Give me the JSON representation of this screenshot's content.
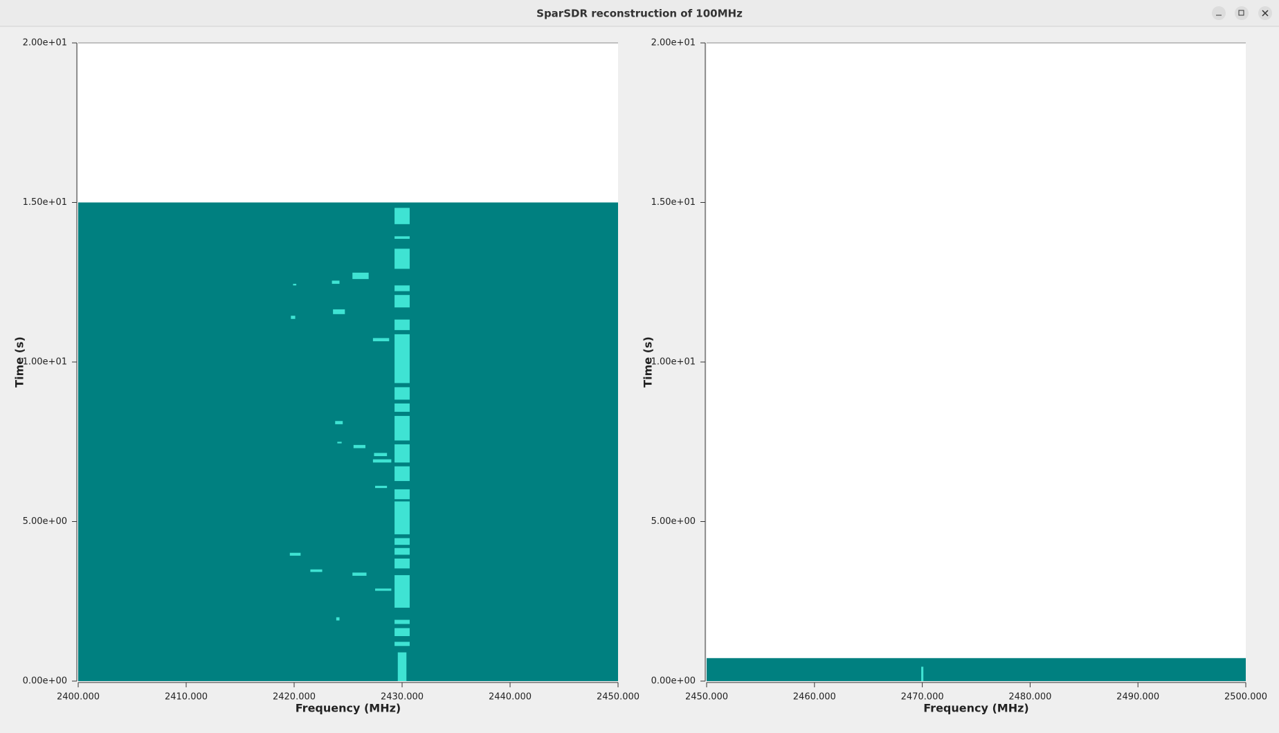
{
  "window": {
    "title": "SparSDR reconstruction of 100MHz"
  },
  "chart_data": [
    {
      "type": "spectrogram",
      "x_label": "Frequency (MHz)",
      "y_label": "Time (s)",
      "xlim": [
        2400,
        2450
      ],
      "ylim": [
        0,
        20
      ],
      "xticks": [
        {
          "value": 2400,
          "label": "2400.000"
        },
        {
          "value": 2410,
          "label": "2410.000"
        },
        {
          "value": 2420,
          "label": "2420.000"
        },
        {
          "value": 2430,
          "label": "2430.000"
        },
        {
          "value": 2440,
          "label": "2440.000"
        },
        {
          "value": 2450,
          "label": "2450.000"
        }
      ],
      "yticks": [
        {
          "value": 0,
          "label": "0.00e+00"
        },
        {
          "value": 5,
          "label": "5.00e+00"
        },
        {
          "value": 10,
          "label": "1.00e+01"
        },
        {
          "value": 15,
          "label": "1.50e+01"
        },
        {
          "value": 20,
          "label": "2.00e+01"
        }
      ],
      "fill_color": "#008080",
      "burst_color": "#3fe3d3",
      "filled_time": [
        0,
        15
      ],
      "bursts": [
        {
          "freq": [
            2429.3,
            2430.7
          ],
          "time": [
            14.32,
            14.83
          ]
        },
        {
          "freq": [
            2429.3,
            2430.7
          ],
          "time": [
            13.86,
            13.94
          ]
        },
        {
          "freq": [
            2429.3,
            2430.7
          ],
          "time": [
            12.92,
            13.55
          ]
        },
        {
          "freq": [
            2429.3,
            2430.7
          ],
          "time": [
            12.22,
            12.4
          ]
        },
        {
          "freq": [
            2429.3,
            2430.7
          ],
          "time": [
            11.71,
            12.1
          ]
        },
        {
          "freq": [
            2429.3,
            2430.7
          ],
          "time": [
            11.0,
            11.33
          ]
        },
        {
          "freq": [
            2429.3,
            2430.7
          ],
          "time": [
            9.34,
            10.87
          ]
        },
        {
          "freq": [
            2429.3,
            2430.7
          ],
          "time": [
            8.82,
            9.21
          ]
        },
        {
          "freq": [
            2429.3,
            2430.7
          ],
          "time": [
            8.44,
            8.7
          ]
        },
        {
          "freq": [
            2429.3,
            2430.7
          ],
          "time": [
            7.54,
            8.31
          ]
        },
        {
          "freq": [
            2429.3,
            2430.7
          ],
          "time": [
            6.85,
            7.42
          ]
        },
        {
          "freq": [
            2429.3,
            2430.7
          ],
          "time": [
            6.27,
            6.73
          ]
        },
        {
          "freq": [
            2429.3,
            2430.7
          ],
          "time": [
            5.7,
            6.01
          ]
        },
        {
          "freq": [
            2429.3,
            2430.7
          ],
          "time": [
            4.6,
            5.63
          ]
        },
        {
          "freq": [
            2429.3,
            2430.7
          ],
          "time": [
            4.27,
            4.48
          ]
        },
        {
          "freq": [
            2429.3,
            2430.7
          ],
          "time": [
            3.96,
            4.17
          ]
        },
        {
          "freq": [
            2429.3,
            2430.7
          ],
          "time": [
            3.53,
            3.84
          ]
        },
        {
          "freq": [
            2429.3,
            2430.7
          ],
          "time": [
            2.3,
            3.32
          ]
        },
        {
          "freq": [
            2429.3,
            2430.7
          ],
          "time": [
            1.79,
            1.92
          ]
        },
        {
          "freq": [
            2429.3,
            2430.7
          ],
          "time": [
            1.41,
            1.66
          ]
        },
        {
          "freq": [
            2429.3,
            2430.7
          ],
          "time": [
            1.1,
            1.23
          ]
        },
        {
          "freq": [
            2429.6,
            2430.4
          ],
          "time": [
            0,
            0.9
          ]
        },
        {
          "freq": [
            2425.4,
            2426.9
          ],
          "time": [
            12.6,
            12.8
          ]
        },
        {
          "freq": [
            2423.5,
            2424.2
          ],
          "time": [
            12.45,
            12.55
          ]
        },
        {
          "freq": [
            2419.9,
            2420.2
          ],
          "time": [
            12.4,
            12.45
          ]
        },
        {
          "freq": [
            2423.6,
            2424.7
          ],
          "time": [
            11.5,
            11.65
          ]
        },
        {
          "freq": [
            2419.7,
            2420.1
          ],
          "time": [
            11.35,
            11.45
          ]
        },
        {
          "freq": [
            2427.3,
            2428.8
          ],
          "time": [
            10.65,
            10.75
          ]
        },
        {
          "freq": [
            2423.8,
            2424.5
          ],
          "time": [
            8.05,
            8.15
          ]
        },
        {
          "freq": [
            2424.0,
            2424.4
          ],
          "time": [
            7.45,
            7.5
          ]
        },
        {
          "freq": [
            2425.5,
            2426.6
          ],
          "time": [
            7.3,
            7.4
          ]
        },
        {
          "freq": [
            2427.4,
            2428.6
          ],
          "time": [
            7.05,
            7.15
          ]
        },
        {
          "freq": [
            2427.3,
            2429.0
          ],
          "time": [
            6.85,
            6.95
          ]
        },
        {
          "freq": [
            2427.5,
            2428.6
          ],
          "time": [
            6.05,
            6.12
          ]
        },
        {
          "freq": [
            2419.6,
            2420.6
          ],
          "time": [
            3.93,
            4.02
          ]
        },
        {
          "freq": [
            2421.5,
            2422.6
          ],
          "time": [
            3.42,
            3.5
          ]
        },
        {
          "freq": [
            2425.4,
            2426.7
          ],
          "time": [
            3.3,
            3.4
          ]
        },
        {
          "freq": [
            2427.5,
            2429.0
          ],
          "time": [
            2.83,
            2.9
          ]
        },
        {
          "freq": [
            2423.9,
            2424.2
          ],
          "time": [
            1.9,
            2.0
          ]
        }
      ]
    },
    {
      "type": "spectrogram",
      "x_label": "Frequency (MHz)",
      "y_label": "Time (s)",
      "xlim": [
        2450,
        2500
      ],
      "ylim": [
        0,
        20
      ],
      "xticks": [
        {
          "value": 2450,
          "label": "2450.000"
        },
        {
          "value": 2460,
          "label": "2460.000"
        },
        {
          "value": 2470,
          "label": "2470.000"
        },
        {
          "value": 2480,
          "label": "2480.000"
        },
        {
          "value": 2490,
          "label": "2490.000"
        },
        {
          "value": 2500,
          "label": "2500.000"
        }
      ],
      "yticks": [
        {
          "value": 0,
          "label": "0.00e+00"
        },
        {
          "value": 5,
          "label": "5.00e+00"
        },
        {
          "value": 10,
          "label": "1.00e+01"
        },
        {
          "value": 15,
          "label": "1.50e+01"
        },
        {
          "value": 20,
          "label": "2.00e+01"
        }
      ],
      "fill_color": "#008080",
      "burst_color": "#3fe3d3",
      "filled_time": [
        0,
        0.72
      ],
      "bursts": [
        {
          "freq": [
            2469.9,
            2470.1
          ],
          "time": [
            0,
            0.45
          ]
        }
      ]
    }
  ]
}
